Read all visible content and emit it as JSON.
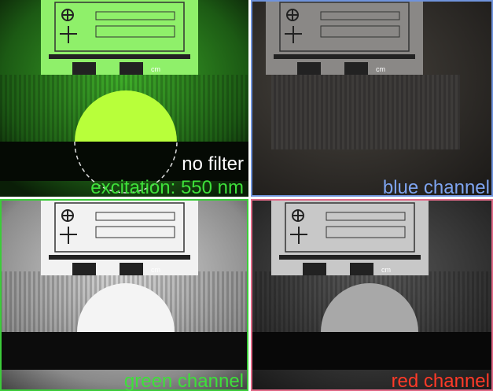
{
  "panels": [
    {
      "note": "no filter",
      "caption": "excitation: 550 nm"
    },
    {
      "caption": "blue channel"
    },
    {
      "caption": "green channel"
    },
    {
      "caption": "red channel"
    }
  ]
}
